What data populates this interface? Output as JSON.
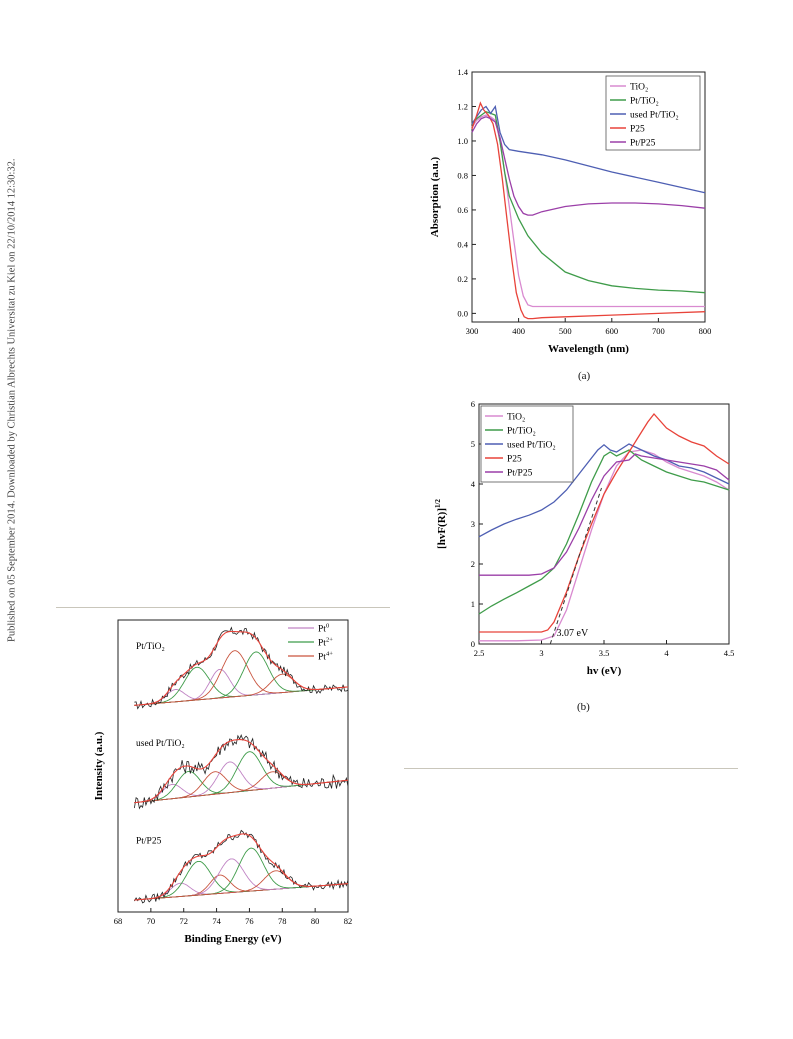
{
  "side_note": "Published on 05 September 2014. Downloaded by Christian Albrechts Universitat zu Kiel on 22/10/2014 12:30:32.",
  "colors": {
    "TiO2": "#d98ad0",
    "Pt/TiO2": "#3f9c4a",
    "used Pt/TiO2": "#4e5fb3",
    "P25": "#e8433a",
    "Pt/P25": "#9b3fa8",
    "fit_envelope": "#e8433a",
    "raw": "#222222",
    "baseline": "#222222",
    "Pt0": "#c084c4",
    "Pt2+": "#3f9c4a",
    "Pt4+": "#c9553f"
  },
  "chart_data": [
    {
      "id": "a",
      "type": "line",
      "panel_label": "(a)",
      "xlabel": "Wavelength (nm)",
      "ylabel": "Absorption (a.u.)",
      "xlim": [
        300,
        800
      ],
      "ylim": [
        -0.05,
        1.4
      ],
      "xticks": [
        300,
        400,
        500,
        600,
        700,
        800
      ],
      "yticks": [
        0.0,
        0.2,
        0.4,
        0.6,
        0.8,
        1.0,
        1.2,
        1.4
      ],
      "ytick_labels": [
        "0.0",
        "0.2",
        "0.4",
        "0.6",
        "0.8",
        "1.0",
        "1.2",
        "1.4"
      ],
      "legend_position": "top-right",
      "series": [
        {
          "name": "TiO₂",
          "key": "TiO2",
          "x": [
            300,
            310,
            320,
            330,
            340,
            350,
            360,
            370,
            380,
            390,
            400,
            410,
            420,
            430,
            450,
            500,
            600,
            700,
            800
          ],
          "y": [
            1.08,
            1.12,
            1.14,
            1.15,
            1.14,
            1.12,
            1.0,
            0.82,
            0.62,
            0.42,
            0.22,
            0.1,
            0.05,
            0.04,
            0.04,
            0.04,
            0.04,
            0.04,
            0.04
          ]
        },
        {
          "name": "Pt/TiO₂",
          "key": "Pt/TiO2",
          "x": [
            300,
            310,
            320,
            330,
            340,
            350,
            360,
            370,
            380,
            400,
            420,
            450,
            500,
            550,
            600,
            650,
            700,
            750,
            800
          ],
          "y": [
            1.1,
            1.13,
            1.15,
            1.17,
            1.16,
            1.15,
            1.0,
            0.82,
            0.68,
            0.55,
            0.45,
            0.35,
            0.24,
            0.19,
            0.16,
            0.145,
            0.135,
            0.13,
            0.12
          ]
        },
        {
          "name": "used Pt/TiO₂",
          "key": "used Pt/TiO2",
          "x": [
            300,
            310,
            320,
            330,
            340,
            350,
            360,
            370,
            380,
            400,
            450,
            500,
            600,
            700,
            800
          ],
          "y": [
            1.1,
            1.14,
            1.18,
            1.2,
            1.16,
            1.2,
            1.05,
            0.98,
            0.95,
            0.94,
            0.92,
            0.89,
            0.82,
            0.76,
            0.7
          ]
        },
        {
          "name": "P25",
          "key": "P25",
          "x": [
            300,
            310,
            318,
            325,
            335,
            345,
            355,
            365,
            375,
            385,
            395,
            405,
            412,
            420,
            430,
            450,
            500,
            600,
            700,
            800
          ],
          "y": [
            1.07,
            1.15,
            1.22,
            1.18,
            1.15,
            1.1,
            0.98,
            0.78,
            0.55,
            0.32,
            0.12,
            0.02,
            -0.02,
            -0.03,
            -0.03,
            -0.025,
            -0.02,
            -0.01,
            0.0,
            0.01
          ]
        },
        {
          "name": "Pt/P25",
          "key": "Pt/P25",
          "x": [
            300,
            310,
            320,
            330,
            340,
            350,
            360,
            370,
            380,
            390,
            400,
            410,
            420,
            430,
            450,
            500,
            550,
            600,
            650,
            700,
            750,
            800
          ],
          "y": [
            1.05,
            1.1,
            1.13,
            1.14,
            1.13,
            1.11,
            1.02,
            0.9,
            0.78,
            0.68,
            0.62,
            0.58,
            0.57,
            0.57,
            0.59,
            0.62,
            0.635,
            0.64,
            0.64,
            0.635,
            0.625,
            0.61
          ]
        }
      ]
    },
    {
      "id": "b",
      "type": "line",
      "panel_label": "(b)",
      "xlabel": "hv (eV)",
      "ylabel": "[hvF(R)]",
      "ylabel_sup": "1/2",
      "xlim": [
        2.5,
        4.5
      ],
      "ylim": [
        0,
        6
      ],
      "xticks": [
        2.5,
        3.0,
        3.5,
        4.0,
        4.5
      ],
      "yticks": [
        0,
        1,
        2,
        3,
        4,
        5,
        6
      ],
      "legend_position": "top-left",
      "annotation": {
        "text": "3.07 eV",
        "x": 3.12,
        "y": 0.1
      },
      "tangent": {
        "x": [
          3.07,
          3.48
        ],
        "y": [
          0.0,
          3.9
        ]
      },
      "series": [
        {
          "name": "TiO₂",
          "key": "TiO2",
          "x": [
            2.5,
            2.8,
            3.0,
            3.1,
            3.2,
            3.3,
            3.4,
            3.5,
            3.6,
            3.7,
            3.8,
            3.9,
            4.0,
            4.1,
            4.2,
            4.3,
            4.4,
            4.5
          ],
          "y": [
            0.08,
            0.08,
            0.1,
            0.2,
            0.85,
            1.85,
            2.85,
            3.75,
            4.45,
            4.8,
            4.85,
            4.75,
            4.55,
            4.4,
            4.3,
            4.2,
            4.05,
            3.85
          ]
        },
        {
          "name": "Pt/TiO₂",
          "key": "Pt/TiO2",
          "x": [
            2.5,
            2.6,
            2.7,
            2.8,
            2.9,
            3.0,
            3.1,
            3.2,
            3.3,
            3.4,
            3.5,
            3.55,
            3.6,
            3.7,
            3.8,
            3.9,
            4.0,
            4.1,
            4.2,
            4.3,
            4.4,
            4.5
          ],
          "y": [
            0.75,
            0.95,
            1.12,
            1.28,
            1.45,
            1.62,
            1.9,
            2.5,
            3.25,
            4.05,
            4.7,
            4.8,
            4.7,
            4.85,
            4.6,
            4.45,
            4.3,
            4.2,
            4.1,
            4.05,
            3.95,
            3.85
          ]
        },
        {
          "name": "used Pt/TiO₂",
          "key": "used Pt/TiO2",
          "x": [
            2.5,
            2.6,
            2.7,
            2.8,
            2.9,
            3.0,
            3.1,
            3.2,
            3.3,
            3.4,
            3.45,
            3.5,
            3.55,
            3.6,
            3.7,
            3.8,
            3.9,
            4.0,
            4.1,
            4.2,
            4.3,
            4.4,
            4.5
          ],
          "y": [
            2.68,
            2.85,
            3.0,
            3.12,
            3.22,
            3.35,
            3.55,
            3.85,
            4.25,
            4.65,
            4.85,
            4.98,
            4.85,
            4.8,
            5.0,
            4.85,
            4.7,
            4.6,
            4.45,
            4.4,
            4.3,
            4.15,
            4.0
          ]
        },
        {
          "name": "P25",
          "key": "P25",
          "x": [
            2.5,
            2.7,
            2.9,
            3.0,
            3.05,
            3.1,
            3.2,
            3.3,
            3.4,
            3.5,
            3.6,
            3.7,
            3.8,
            3.85,
            3.9,
            4.0,
            4.1,
            4.2,
            4.3,
            4.4,
            4.5
          ],
          "y": [
            0.3,
            0.3,
            0.3,
            0.3,
            0.35,
            0.55,
            1.3,
            2.2,
            3.0,
            3.75,
            4.3,
            4.8,
            5.3,
            5.55,
            5.75,
            5.4,
            5.2,
            5.05,
            4.95,
            4.7,
            4.5
          ]
        },
        {
          "name": "Pt/P25",
          "key": "Pt/P25",
          "x": [
            2.5,
            2.7,
            2.9,
            3.0,
            3.1,
            3.2,
            3.3,
            3.4,
            3.5,
            3.6,
            3.7,
            3.75,
            3.8,
            3.9,
            4.0,
            4.1,
            4.2,
            4.3,
            4.4,
            4.5
          ],
          "y": [
            1.72,
            1.72,
            1.72,
            1.75,
            1.9,
            2.3,
            2.9,
            3.6,
            4.2,
            4.55,
            4.6,
            4.75,
            4.7,
            4.65,
            4.6,
            4.55,
            4.5,
            4.45,
            4.35,
            4.1
          ]
        }
      ]
    },
    {
      "id": "c",
      "type": "line",
      "xlabel": "Binding Energy (eV)",
      "ylabel": "Intensity (a.u.)",
      "xlim": [
        68,
        82
      ],
      "xticks": [
        68,
        70,
        72,
        74,
        76,
        78,
        80,
        82
      ],
      "legend_position": "top-right",
      "legend": [
        {
          "name": "Pt",
          "sup": "0",
          "key": "Pt0"
        },
        {
          "name": "Pt",
          "sup": "2+",
          "key": "Pt2+"
        },
        {
          "name": "Pt",
          "sup": "4+",
          "key": "Pt4+"
        }
      ],
      "stacks": [
        {
          "label": "Pt/TiO₂",
          "offset": 2.0,
          "baseline": {
            "x": [
              69,
              82
            ],
            "y": [
              0.0,
              0.18
            ]
          },
          "peaks": [
            {
              "center": 71.5,
              "height": 0.12,
              "width": 0.55,
              "component": "Pt0"
            },
            {
              "center": 72.8,
              "height": 0.32,
              "width": 0.75,
              "component": "Pt2+"
            },
            {
              "center": 74.2,
              "height": 0.28,
              "width": 0.6,
              "component": "Pt0"
            },
            {
              "center": 75.1,
              "height": 0.45,
              "width": 0.8,
              "component": "Pt4+"
            },
            {
              "center": 76.4,
              "height": 0.42,
              "width": 0.75,
              "component": "Pt2+"
            },
            {
              "center": 78.0,
              "height": 0.18,
              "width": 0.7,
              "component": "Pt4+"
            }
          ],
          "noise_amplitude": 0.04
        },
        {
          "label": "used Pt/TiO₂",
          "offset": 1.0,
          "baseline": {
            "x": [
              69,
              82
            ],
            "y": [
              0.0,
              0.22
            ]
          },
          "peaks": [
            {
              "center": 71.3,
              "height": 0.14,
              "width": 0.6,
              "component": "Pt0"
            },
            {
              "center": 72.3,
              "height": 0.25,
              "width": 0.7,
              "component": "Pt2+"
            },
            {
              "center": 73.9,
              "height": 0.22,
              "width": 0.7,
              "component": "Pt4+"
            },
            {
              "center": 74.8,
              "height": 0.3,
              "width": 0.7,
              "component": "Pt0"
            },
            {
              "center": 76.0,
              "height": 0.38,
              "width": 0.75,
              "component": "Pt2+"
            },
            {
              "center": 77.4,
              "height": 0.16,
              "width": 0.7,
              "component": "Pt4+"
            }
          ],
          "noise_amplitude": 0.07
        },
        {
          "label": "Pt/P25",
          "offset": 0.0,
          "baseline": {
            "x": [
              69,
              82
            ],
            "y": [
              0.0,
              0.16
            ]
          },
          "peaks": [
            {
              "center": 71.8,
              "height": 0.13,
              "width": 0.6,
              "component": "Pt0"
            },
            {
              "center": 72.9,
              "height": 0.33,
              "width": 0.75,
              "component": "Pt2+"
            },
            {
              "center": 74.2,
              "height": 0.18,
              "width": 0.6,
              "component": "Pt4+"
            },
            {
              "center": 74.9,
              "height": 0.33,
              "width": 0.75,
              "component": "Pt0"
            },
            {
              "center": 76.1,
              "height": 0.42,
              "width": 0.75,
              "component": "Pt2+"
            },
            {
              "center": 77.6,
              "height": 0.18,
              "width": 0.7,
              "component": "Pt4+"
            }
          ],
          "noise_amplitude": 0.04
        }
      ]
    }
  ]
}
